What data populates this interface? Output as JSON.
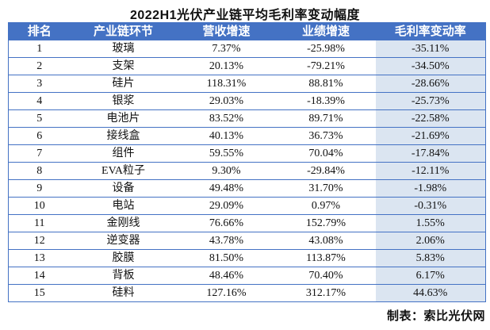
{
  "colors": {
    "header_bg": "#4472C4",
    "header_text": "#FFFFFF",
    "border": "#4472C4",
    "highlight_column_bg": "#DBE5F1"
  },
  "chart_data": {
    "type": "table",
    "title": "2022H1光伏产业链平均毛利率变动幅度",
    "columns": [
      "排名",
      "产业链环节",
      "营收增速",
      "业绩增速",
      "毛利率变动率"
    ],
    "highlight_column": "毛利率变动率",
    "rows": [
      [
        "1",
        "玻璃",
        "7.37%",
        "-25.98%",
        "-35.11%"
      ],
      [
        "2",
        "支架",
        "20.13%",
        "-79.21%",
        "-34.50%"
      ],
      [
        "3",
        "硅片",
        "118.31%",
        "88.81%",
        "-28.66%"
      ],
      [
        "4",
        "银浆",
        "29.03%",
        "-18.39%",
        "-25.73%"
      ],
      [
        "5",
        "电池片",
        "83.52%",
        "89.71%",
        "-22.58%"
      ],
      [
        "6",
        "接线盒",
        "40.13%",
        "36.73%",
        "-21.69%"
      ],
      [
        "7",
        "组件",
        "59.55%",
        "70.04%",
        "-17.84%"
      ],
      [
        "8",
        "EVA粒子",
        "9.30%",
        "-29.84%",
        "-12.11%"
      ],
      [
        "9",
        "设备",
        "49.48%",
        "31.70%",
        "-1.98%"
      ],
      [
        "10",
        "电站",
        "29.09%",
        "0.97%",
        "-0.31%"
      ],
      [
        "11",
        "金刚线",
        "76.66%",
        "152.79%",
        "1.55%"
      ],
      [
        "12",
        "逆变器",
        "43.78%",
        "43.08%",
        "2.06%"
      ],
      [
        "13",
        "胶膜",
        "81.50%",
        "113.87%",
        "5.83%"
      ],
      [
        "14",
        "背板",
        "48.46%",
        "70.40%",
        "6.17%"
      ],
      [
        "15",
        "硅料",
        "127.16%",
        "312.17%",
        "44.63%"
      ]
    ],
    "credit": "制表：索比光伏网"
  }
}
